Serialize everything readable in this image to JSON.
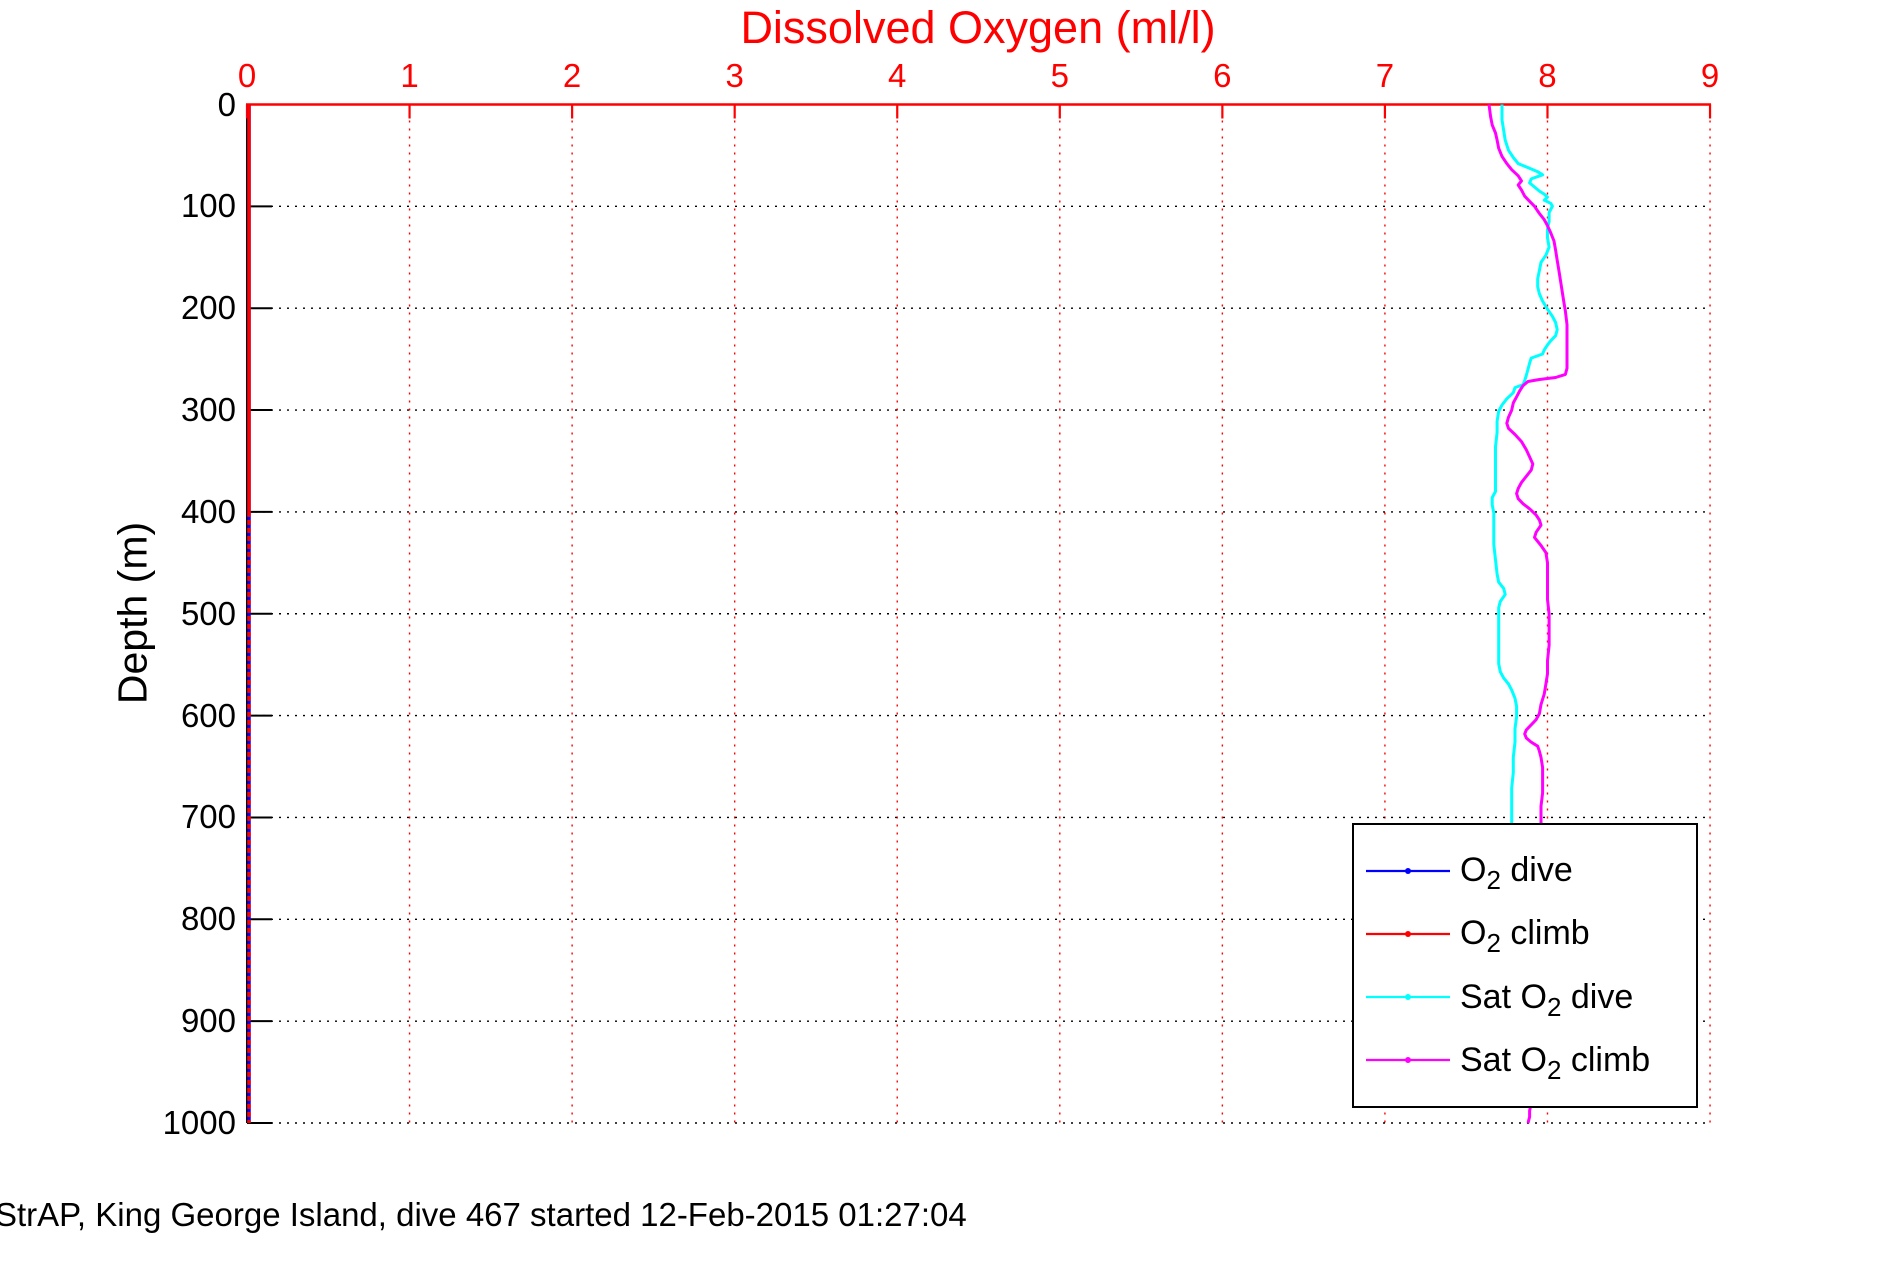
{
  "caption": "StrAP, King George Island, dive 467 started 12-Feb-2015 01:27:04",
  "chart_data": {
    "type": "line",
    "title": "Dissolved Oxygen (ml/l)",
    "xlabel": "Dissolved Oxygen (ml/l)",
    "ylabel": "Depth (m)",
    "x_axis_location": "top",
    "xlim": [
      0,
      9
    ],
    "ylim": [
      0,
      1000
    ],
    "y_direction": "reverse",
    "grid": true,
    "x_ticks": [
      0,
      1,
      2,
      3,
      4,
      5,
      6,
      7,
      8,
      9
    ],
    "y_ticks": [
      0,
      100,
      200,
      300,
      400,
      500,
      600,
      700,
      800,
      900,
      1000
    ],
    "colors": {
      "x_axis": "#ff0000",
      "y_axis": "#000000",
      "x_grid": "#ff0000",
      "y_grid": "#000000",
      "title": "#ff0000"
    },
    "legend_position": "lower-right-inside",
    "series": [
      {
        "id": "o2-dive",
        "label_pre": "O",
        "label_sub": "2",
        "label_post": " dive",
        "color": "#0000ff",
        "width": 3.5,
        "points": [
          [
            0.012,
            0
          ],
          [
            0.012,
            1000
          ]
        ]
      },
      {
        "id": "o2-climb",
        "label_pre": "O",
        "label_sub": "2",
        "label_post": " climb",
        "color": "#ff0000",
        "width": 3.5,
        "dash_below_depth": 400,
        "points": [
          [
            0.012,
            0
          ],
          [
            0.012,
            1000
          ]
        ]
      },
      {
        "id": "sat-o2-dive",
        "label_pre": "Sat O",
        "label_sub": "2",
        "label_post": " dive",
        "color": "#00ffff",
        "width": 3,
        "points": [
          [
            7.72,
            0
          ],
          [
            7.72,
            15
          ],
          [
            7.73,
            25
          ],
          [
            7.74,
            35
          ],
          [
            7.76,
            45
          ],
          [
            7.79,
            52
          ],
          [
            7.82,
            58
          ],
          [
            7.88,
            62
          ],
          [
            7.94,
            66
          ],
          [
            7.97,
            69
          ],
          [
            7.9,
            73
          ],
          [
            7.89,
            77
          ],
          [
            7.92,
            81
          ],
          [
            7.95,
            85
          ],
          [
            7.98,
            88
          ],
          [
            8.0,
            91
          ],
          [
            7.98,
            94
          ],
          [
            8.02,
            97
          ],
          [
            8.03,
            100
          ],
          [
            8.01,
            106
          ],
          [
            8.01,
            115
          ],
          [
            8.0,
            122
          ],
          [
            8.0,
            131
          ],
          [
            8.01,
            140
          ],
          [
            7.99,
            148
          ],
          [
            7.96,
            155
          ],
          [
            7.95,
            163
          ],
          [
            7.94,
            171
          ],
          [
            7.94,
            179
          ],
          [
            7.95,
            186
          ],
          [
            7.97,
            193
          ],
          [
            8.0,
            201
          ],
          [
            8.03,
            208
          ],
          [
            8.05,
            214
          ],
          [
            8.06,
            221
          ],
          [
            8.05,
            227
          ],
          [
            8.02,
            232
          ],
          [
            8.0,
            236
          ],
          [
            7.98,
            241
          ],
          [
            7.97,
            245
          ],
          [
            7.9,
            249
          ],
          [
            7.89,
            254
          ],
          [
            7.88,
            260
          ],
          [
            7.87,
            266
          ],
          [
            7.86,
            271
          ],
          [
            7.85,
            275
          ],
          [
            7.8,
            278
          ],
          [
            7.79,
            283
          ],
          [
            7.75,
            289
          ],
          [
            7.72,
            295
          ],
          [
            7.7,
            301
          ],
          [
            7.69,
            311
          ],
          [
            7.69,
            322
          ],
          [
            7.68,
            336
          ],
          [
            7.68,
            352
          ],
          [
            7.68,
            368
          ],
          [
            7.68,
            380
          ],
          [
            7.66,
            386
          ],
          [
            7.66,
            393
          ],
          [
            7.67,
            401
          ],
          [
            7.67,
            416
          ],
          [
            7.67,
            432
          ],
          [
            7.68,
            447
          ],
          [
            7.69,
            461
          ],
          [
            7.7,
            469
          ],
          [
            7.73,
            475
          ],
          [
            7.74,
            481
          ],
          [
            7.71,
            488
          ],
          [
            7.7,
            494
          ],
          [
            7.7,
            506
          ],
          [
            7.7,
            521
          ],
          [
            7.7,
            536
          ],
          [
            7.7,
            549
          ],
          [
            7.71,
            557
          ],
          [
            7.73,
            563
          ],
          [
            7.76,
            569
          ],
          [
            7.78,
            575
          ],
          [
            7.8,
            583
          ],
          [
            7.81,
            591
          ],
          [
            7.81,
            601
          ],
          [
            7.8,
            613
          ],
          [
            7.8,
            626
          ],
          [
            7.79,
            641
          ],
          [
            7.79,
            656
          ],
          [
            7.78,
            671
          ],
          [
            7.78,
            686
          ],
          [
            7.78,
            701
          ],
          [
            7.78,
            710
          ]
        ]
      },
      {
        "id": "sat-o2-climb",
        "label_pre": "Sat O",
        "label_sub": "2",
        "label_post": " climb",
        "color": "#ff00ff",
        "width": 3,
        "points": [
          [
            7.64,
            0
          ],
          [
            7.65,
            12
          ],
          [
            7.66,
            20
          ],
          [
            7.68,
            28
          ],
          [
            7.69,
            35
          ],
          [
            7.7,
            43
          ],
          [
            7.72,
            51
          ],
          [
            7.75,
            58
          ],
          [
            7.78,
            64
          ],
          [
            7.82,
            70
          ],
          [
            7.84,
            75
          ],
          [
            7.82,
            79
          ],
          [
            7.84,
            84
          ],
          [
            7.86,
            90
          ],
          [
            7.89,
            95
          ],
          [
            7.92,
            100
          ],
          [
            7.95,
            107
          ],
          [
            7.98,
            113
          ],
          [
            8.0,
            119
          ],
          [
            8.02,
            126
          ],
          [
            8.04,
            134
          ],
          [
            8.05,
            143
          ],
          [
            8.06,
            153
          ],
          [
            8.07,
            163
          ],
          [
            8.08,
            173
          ],
          [
            8.09,
            183
          ],
          [
            8.1,
            193
          ],
          [
            8.11,
            203
          ],
          [
            8.12,
            216
          ],
          [
            8.12,
            231
          ],
          [
            8.12,
            246
          ],
          [
            8.12,
            259
          ],
          [
            8.11,
            265
          ],
          [
            8.05,
            268
          ],
          [
            7.95,
            270
          ],
          [
            7.88,
            272
          ],
          [
            7.85,
            276
          ],
          [
            7.83,
            281
          ],
          [
            7.81,
            287
          ],
          [
            7.79,
            293
          ],
          [
            7.78,
            300
          ],
          [
            7.76,
            307
          ],
          [
            7.75,
            313
          ],
          [
            7.76,
            318
          ],
          [
            7.8,
            324
          ],
          [
            7.84,
            331
          ],
          [
            7.87,
            339
          ],
          [
            7.89,
            346
          ],
          [
            7.91,
            353
          ],
          [
            7.9,
            359
          ],
          [
            7.87,
            365
          ],
          [
            7.84,
            371
          ],
          [
            7.82,
            377
          ],
          [
            7.81,
            382
          ],
          [
            7.82,
            387
          ],
          [
            7.85,
            392
          ],
          [
            7.89,
            397
          ],
          [
            7.93,
            403
          ],
          [
            7.95,
            408
          ],
          [
            7.96,
            413
          ],
          [
            7.93,
            420
          ],
          [
            7.92,
            425
          ],
          [
            7.96,
            433
          ],
          [
            7.99,
            440
          ],
          [
            8.0,
            450
          ],
          [
            8.0,
            461
          ],
          [
            8.0,
            473
          ],
          [
            8.0,
            486
          ],
          [
            8.01,
            500
          ],
          [
            8.01,
            516
          ],
          [
            8.01,
            531
          ],
          [
            8.0,
            546
          ],
          [
            8.0,
            559
          ],
          [
            7.99,
            569
          ],
          [
            7.98,
            579
          ],
          [
            7.96,
            589
          ],
          [
            7.95,
            598
          ],
          [
            7.93,
            604
          ],
          [
            7.9,
            609
          ],
          [
            7.87,
            614
          ],
          [
            7.86,
            618
          ],
          [
            7.87,
            622
          ],
          [
            7.9,
            626
          ],
          [
            7.94,
            630
          ],
          [
            7.95,
            635
          ],
          [
            7.96,
            641
          ],
          [
            7.97,
            651
          ],
          [
            7.97,
            663
          ],
          [
            7.97,
            676
          ],
          [
            7.96,
            689
          ],
          [
            7.96,
            701
          ],
          [
            7.96,
            712
          ],
          [
            7.95,
            750
          ],
          [
            7.93,
            820
          ],
          [
            7.92,
            900
          ],
          [
            7.91,
            960
          ],
          [
            7.9,
            980
          ],
          [
            7.89,
            988
          ],
          [
            7.89,
            994
          ],
          [
            7.88,
            1000
          ]
        ]
      }
    ]
  }
}
